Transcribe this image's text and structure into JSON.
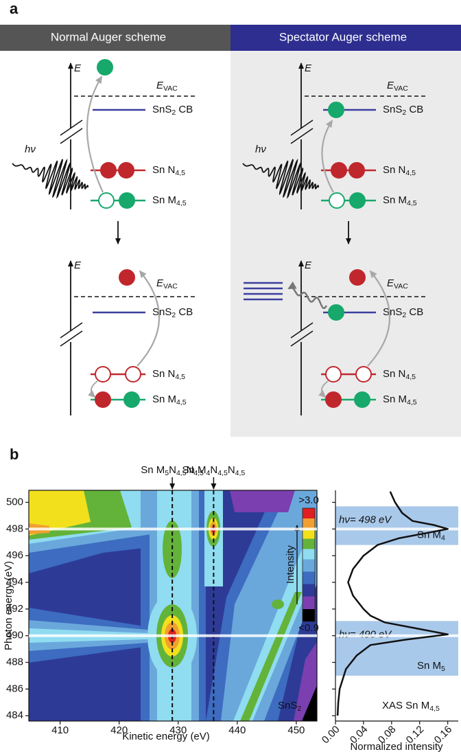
{
  "panel_a": {
    "label": "a",
    "schemes": [
      {
        "title": "Normal Auger scheme",
        "before": {
          "photon": "hν",
          "energy_axis": "E",
          "vacuum": [
            "E",
            "VAC"
          ],
          "conduction_band": [
            "SnS",
            "2",
            " CB"
          ],
          "n_level": [
            "Sn N",
            "4,5"
          ],
          "m_level": [
            "Sn M",
            "4,5"
          ]
        },
        "after": {
          "energy_axis": "E",
          "vacuum": [
            "E",
            "VAC"
          ],
          "conduction_band": [
            "SnS",
            "2",
            " CB"
          ],
          "n_level": [
            "Sn N",
            "4,5"
          ],
          "m_level": [
            "Sn M",
            "4,5"
          ]
        }
      },
      {
        "title": "Spectator Auger scheme",
        "before": {
          "photon": "hν",
          "energy_axis": "E",
          "vacuum": [
            "E",
            "VAC"
          ],
          "conduction_band": [
            "SnS",
            "2",
            " CB"
          ],
          "n_level": [
            "Sn N",
            "4,5"
          ],
          "m_level": [
            "Sn M",
            "4,5"
          ]
        },
        "after": {
          "energy_axis": "E",
          "vacuum": [
            "E",
            "VAC"
          ],
          "conduction_band": [
            "SnS",
            "2",
            " CB"
          ],
          "n_level": [
            "Sn N",
            "4,5"
          ],
          "m_level": [
            "Sn M",
            "4,5"
          ]
        }
      }
    ]
  },
  "panel_b": {
    "label": "b",
    "map": {
      "type": "contour",
      "x_label": "Kinetic energy (eV)",
      "y_label": "Photon energy (eV)",
      "xlim": [
        404.7,
        453.5
      ],
      "xticks": [
        410,
        420,
        430,
        440,
        450
      ],
      "ylim": [
        483.6,
        500.9
      ],
      "yticks": [
        484,
        486,
        488,
        490,
        492,
        494,
        496,
        498,
        500
      ],
      "auger_lines": [
        {
          "label": [
            "Sn M",
            "5",
            "N",
            "4,5",
            "N",
            "4,5"
          ],
          "x": 429
        },
        {
          "label": [
            "Sn M",
            "4",
            "N",
            "4,5",
            "N",
            "4,5"
          ],
          "x": 436
        }
      ],
      "photon_lines": [
        498,
        490
      ],
      "colorbar": {
        "label": "Intensity",
        "ticks": [
          {
            "value": 3.0,
            "label": ">3.0"
          },
          {
            "value": 0.9,
            "label": "<0.9"
          }
        ]
      },
      "sample_label": [
        "SnS",
        "2"
      ]
    },
    "xas": {
      "type": "line",
      "x_label": "Normalized intensity",
      "xlim": [
        0,
        0.175
      ],
      "xticks": [
        {
          "value": 0,
          "label": "0.00"
        },
        0.04,
        0.08,
        0.12,
        0.16
      ],
      "ylim": [
        483.6,
        500.9
      ],
      "label": [
        "XAS Sn M",
        "4,5"
      ],
      "photon_energy": [
        500.8,
        500,
        499.2,
        498.6,
        498.3,
        498.0,
        497.7,
        497.3,
        496.8,
        496,
        495,
        494,
        493,
        492,
        491.5,
        491,
        490.5,
        490.1,
        489.7,
        489.3,
        488.5,
        487.5,
        486,
        485,
        484
      ],
      "intensity": [
        0.078,
        0.085,
        0.095,
        0.11,
        0.14,
        0.16,
        0.13,
        0.09,
        0.06,
        0.04,
        0.025,
        0.018,
        0.025,
        0.04,
        0.05,
        0.07,
        0.12,
        0.16,
        0.1,
        0.05,
        0.03,
        0.015,
        0.006,
        0.004,
        0.003
      ],
      "bands": [
        {
          "range": [
            496.8,
            499.7
          ],
          "annotation": "hν= 498 eV",
          "edge": [
            "Sn M",
            "4"
          ]
        },
        {
          "range": [
            487.0,
            491.1
          ],
          "annotation": "hν= 490 eV",
          "edge": [
            "Sn M",
            "5"
          ]
        }
      ]
    }
  }
}
